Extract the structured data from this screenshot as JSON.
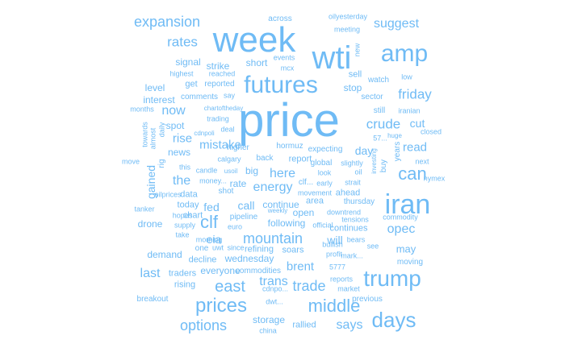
{
  "word_color": "#6fbbf5",
  "words": [
    {
      "t": "price",
      "s": 58
    },
    {
      "t": "week",
      "s": 44
    },
    {
      "t": "wti",
      "s": 40
    },
    {
      "t": "iran",
      "s": 34
    },
    {
      "t": "futures",
      "s": 30
    },
    {
      "t": "amp",
      "s": 30
    },
    {
      "t": "trump",
      "s": 28
    },
    {
      "t": "days",
      "s": 26
    },
    {
      "t": "prices",
      "s": 24
    },
    {
      "t": "middle",
      "s": 22
    },
    {
      "t": "can",
      "s": 22
    },
    {
      "t": "clf",
      "s": 22
    },
    {
      "t": "east",
      "s": 20
    },
    {
      "t": "mountain",
      "s": 18
    },
    {
      "t": "expansion",
      "s": 18
    },
    {
      "t": "options",
      "s": 18
    },
    {
      "t": "trade",
      "s": 18
    },
    {
      "t": "crude",
      "s": 17
    },
    {
      "t": "friday",
      "s": 17
    },
    {
      "t": "rates",
      "s": 17
    },
    {
      "t": "energy",
      "s": 16
    },
    {
      "t": "opec",
      "s": 16
    },
    {
      "t": "suggest",
      "s": 16
    },
    {
      "t": "the",
      "s": 16
    },
    {
      "t": "says",
      "s": 16
    },
    {
      "t": "here",
      "s": 16
    },
    {
      "t": "last",
      "s": 16
    },
    {
      "t": "now",
      "s": 16
    },
    {
      "t": "trans",
      "s": 16
    },
    {
      "t": "mistake",
      "s": 15
    },
    {
      "t": "read",
      "s": 15
    },
    {
      "t": "rise",
      "s": 15
    },
    {
      "t": "brent",
      "s": 15
    },
    {
      "t": "eia",
      "s": 14
    },
    {
      "t": "fed",
      "s": 14
    },
    {
      "t": "call",
      "s": 14
    },
    {
      "t": "will",
      "s": 14
    },
    {
      "t": "cut",
      "s": 14
    },
    {
      "t": "gained",
      "s": 14
    },
    {
      "t": "day",
      "s": 14
    },
    {
      "t": "may",
      "s": 13
    },
    {
      "t": "continue",
      "s": 12
    },
    {
      "t": "following",
      "s": 12
    },
    {
      "t": "demand",
      "s": 12
    },
    {
      "t": "wednesday",
      "s": 12
    },
    {
      "t": "everyone",
      "s": 12
    },
    {
      "t": "level",
      "s": 12
    },
    {
      "t": "interest",
      "s": 12
    },
    {
      "t": "signal",
      "s": 12
    },
    {
      "t": "strike",
      "s": 12
    },
    {
      "t": "short",
      "s": 12
    },
    {
      "t": "sell",
      "s": 11
    },
    {
      "t": "stop",
      "s": 12
    },
    {
      "t": "get",
      "s": 11
    },
    {
      "t": "spot",
      "s": 12
    },
    {
      "t": "news",
      "s": 12
    },
    {
      "t": "big",
      "s": 12
    },
    {
      "t": "rate",
      "s": 12
    },
    {
      "t": "open",
      "s": 12
    },
    {
      "t": "report",
      "s": 11
    },
    {
      "t": "area",
      "s": 11
    },
    {
      "t": "data",
      "s": 11
    },
    {
      "t": "today",
      "s": 11
    },
    {
      "t": "drone",
      "s": 12
    },
    {
      "t": "soars",
      "s": 11
    },
    {
      "t": "chart",
      "s": 11
    },
    {
      "t": "traders",
      "s": 11
    },
    {
      "t": "rising",
      "s": 11
    },
    {
      "t": "storage",
      "s": 12
    },
    {
      "t": "rallied",
      "s": 11
    },
    {
      "t": "continues",
      "s": 11
    },
    {
      "t": "ahead",
      "s": 11
    },
    {
      "t": "decline",
      "s": 11
    },
    {
      "t": "refining",
      "s": 11
    },
    {
      "t": "pipeline",
      "s": 10
    },
    {
      "t": "highest",
      "s": 9
    },
    {
      "t": "reported",
      "s": 10
    },
    {
      "t": "reached",
      "s": 9
    },
    {
      "t": "say",
      "s": 9
    },
    {
      "t": "comments",
      "s": 10
    },
    {
      "t": "chartoftheday",
      "s": 8
    },
    {
      "t": "trading",
      "s": 9
    },
    {
      "t": "deal",
      "s": 9
    },
    {
      "t": "cdnpoli",
      "s": 8
    },
    {
      "t": "higher",
      "s": 10
    },
    {
      "t": "hormuz",
      "s": 10
    },
    {
      "t": "expecting",
      "s": 10
    },
    {
      "t": "calgary",
      "s": 9
    },
    {
      "t": "back",
      "s": 10
    },
    {
      "t": "candle",
      "s": 9
    },
    {
      "t": "usoil",
      "s": 8
    },
    {
      "t": "money...",
      "s": 9
    },
    {
      "t": "shot",
      "s": 10
    },
    {
      "t": "hopes",
      "s": 9
    },
    {
      "t": "supply",
      "s": 9
    },
    {
      "t": "take",
      "s": 9
    },
    {
      "t": "morning",
      "s": 9
    },
    {
      "t": "one",
      "s": 10
    },
    {
      "t": "uwt",
      "s": 9
    },
    {
      "t": "since",
      "s": 9
    },
    {
      "t": "euro",
      "s": 9
    },
    {
      "t": "weekly",
      "s": 8
    },
    {
      "t": "movement",
      "s": 9
    },
    {
      "t": "look",
      "s": 9
    },
    {
      "t": "oil",
      "s": 9
    },
    {
      "t": "clf...",
      "s": 10
    },
    {
      "t": "early",
      "s": 9
    },
    {
      "t": "global",
      "s": 10
    },
    {
      "t": "slightly",
      "s": 9
    },
    {
      "t": "strait",
      "s": 9
    },
    {
      "t": "investing",
      "s": 8
    },
    {
      "t": "buy",
      "s": 10
    },
    {
      "t": "official",
      "s": 9
    },
    {
      "t": "tensions",
      "s": 9
    },
    {
      "t": "commodity",
      "s": 9
    },
    {
      "t": "mark...",
      "s": 9
    },
    {
      "t": "see",
      "s": 9
    },
    {
      "t": "bullish",
      "s": 9
    },
    {
      "t": "bears",
      "s": 9
    },
    {
      "t": "downtrend",
      "s": 9
    },
    {
      "t": "thursday",
      "s": 10
    },
    {
      "t": "5777",
      "s": 9
    },
    {
      "t": "reports",
      "s": 9
    },
    {
      "t": "profit",
      "s": 9
    },
    {
      "t": "market",
      "s": 9
    },
    {
      "t": "moving",
      "s": 10
    },
    {
      "t": "previous",
      "s": 10
    },
    {
      "t": "dwt...",
      "s": 9
    },
    {
      "t": "cdnpo...",
      "s": 9
    },
    {
      "t": "china",
      "s": 9
    },
    {
      "t": "commodities",
      "s": 10
    },
    {
      "t": "breakout",
      "s": 10
    },
    {
      "t": "across",
      "s": 10
    },
    {
      "t": "oilyesterday",
      "s": 9
    },
    {
      "t": "meeting",
      "s": 9
    },
    {
      "t": "new",
      "s": 9
    },
    {
      "t": "events",
      "s": 9
    },
    {
      "t": "mcx",
      "s": 9
    },
    {
      "t": "watch",
      "s": 10
    },
    {
      "t": "low",
      "s": 9
    },
    {
      "t": "sector",
      "s": 10
    },
    {
      "t": "still",
      "s": 10
    },
    {
      "t": "iranian",
      "s": 9
    },
    {
      "t": "57...",
      "s": 9
    },
    {
      "t": "huge",
      "s": 8
    },
    {
      "t": "years",
      "s": 10
    },
    {
      "t": "closed",
      "s": 9
    },
    {
      "t": "next",
      "s": 9
    },
    {
      "t": "nymex",
      "s": 9
    },
    {
      "t": "months",
      "s": 9
    },
    {
      "t": "towards",
      "s": 9
    },
    {
      "t": "almost",
      "s": 9
    },
    {
      "t": "daily",
      "s": 9
    },
    {
      "t": "move",
      "s": 9
    },
    {
      "t": "rig",
      "s": 10
    },
    {
      "t": "this",
      "s": 9
    },
    {
      "t": "oilprices",
      "s": 9
    },
    {
      "t": "tanker",
      "s": 9
    }
  ]
}
